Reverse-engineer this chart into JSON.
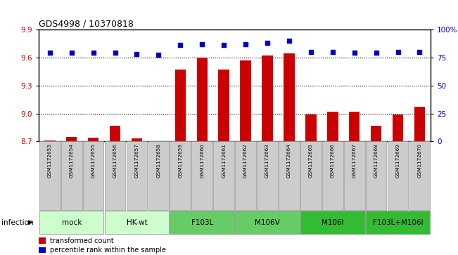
{
  "title": "GDS4998 / 10370818",
  "samples": [
    "GSM1172653",
    "GSM1172654",
    "GSM1172655",
    "GSM1172656",
    "GSM1172657",
    "GSM1172658",
    "GSM1172659",
    "GSM1172660",
    "GSM1172661",
    "GSM1172662",
    "GSM1172663",
    "GSM1172664",
    "GSM1172665",
    "GSM1172666",
    "GSM1172667",
    "GSM1172668",
    "GSM1172669",
    "GSM1172670"
  ],
  "bar_values": [
    8.71,
    8.75,
    8.74,
    8.87,
    8.73,
    8.7,
    9.47,
    9.6,
    9.47,
    9.57,
    9.62,
    9.64,
    8.99,
    9.02,
    9.02,
    8.87,
    8.99,
    9.07
  ],
  "dot_values": [
    79,
    79,
    79,
    79,
    78,
    77,
    86,
    87,
    86,
    87,
    88,
    90,
    80,
    80,
    79,
    79,
    80,
    80
  ],
  "ylim_left": [
    8.7,
    9.9
  ],
  "ylim_right": [
    0,
    100
  ],
  "yticks_left": [
    8.7,
    9.0,
    9.3,
    9.6,
    9.9
  ],
  "yticks_right": [
    0,
    25,
    50,
    75,
    100
  ],
  "bar_color": "#cc0000",
  "dot_color": "#0000cc",
  "bar_bottom": 8.7,
  "groups": [
    {
      "label": "mock",
      "indices": [
        0,
        1,
        2
      ],
      "color": "#ccffcc"
    },
    {
      "label": "HK-wt",
      "indices": [
        3,
        4,
        5
      ],
      "color": "#ccffcc"
    },
    {
      "label": "F103L",
      "indices": [
        6,
        7,
        8
      ],
      "color": "#66cc66"
    },
    {
      "label": "M106V",
      "indices": [
        9,
        10,
        11
      ],
      "color": "#66cc66"
    },
    {
      "label": "M106I",
      "indices": [
        12,
        13,
        14
      ],
      "color": "#33bb33"
    },
    {
      "label": "F103L+M106I",
      "indices": [
        15,
        16,
        17
      ],
      "color": "#33bb33"
    }
  ],
  "legend_bar_label": "transformed count",
  "legend_dot_label": "percentile rank within the sample",
  "xlabel_infection": "infection",
  "background_color": "#ffffff",
  "tick_color_left": "#cc0000",
  "tick_color_right": "#0000cc",
  "dotted_lines": [
    9.0,
    9.3,
    9.6
  ],
  "sample_bg_color": "#cccccc",
  "title_fontsize": 9,
  "ytick_fontsize": 7.5,
  "sample_fontsize": 5.2,
  "group_fontsize": 7.5
}
